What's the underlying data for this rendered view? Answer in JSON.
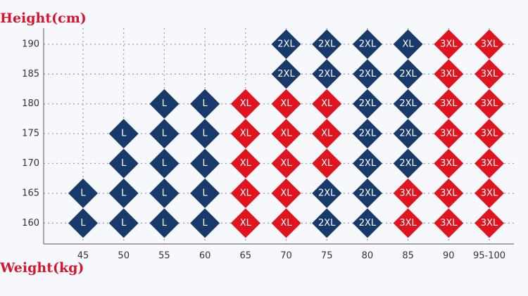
{
  "chart_data": {
    "type": "size-grid",
    "ylabel": "Height(cm)",
    "xlabel": "Weight(kg)",
    "categories": [
      "45",
      "50",
      "55",
      "60",
      "65",
      "70",
      "75",
      "80",
      "85",
      "90",
      "95-100"
    ],
    "ylim": [
      156.5,
      192.7
    ],
    "yticks": [
      160,
      165,
      170,
      175,
      180,
      185,
      190
    ],
    "grid": true,
    "rows": [
      {
        "labels": [
          "L",
          "L",
          "L",
          "L",
          "XL",
          "XL",
          "2XL",
          "2XL",
          "3XL",
          "3XL",
          "3XL"
        ],
        "colors": [
          "#173a6b",
          "#173a6b",
          "#173a6b",
          "#173a6b",
          "#e0141e",
          "#e0141e",
          "#173a6b",
          "#173a6b",
          "#e0141e",
          "#e0141e",
          "#e0141e"
        ]
      },
      {
        "labels": [
          "L",
          "L",
          "L",
          "L",
          "XL",
          "XL",
          "2XL",
          "2XL",
          "3XL",
          "3XL",
          "3XL"
        ],
        "colors": [
          "#173a6b",
          "#173a6b",
          "#173a6b",
          "#173a6b",
          "#e0141e",
          "#e0141e",
          "#173a6b",
          "#173a6b",
          "#e0141e",
          "#e0141e",
          "#e0141e"
        ]
      },
      {
        "labels": [
          null,
          "L",
          "L",
          "L",
          "XL",
          "XL",
          "XL",
          "2XL",
          "2XL",
          "3XL",
          "3XL"
        ],
        "colors": [
          null,
          "#173a6b",
          "#173a6b",
          "#173a6b",
          "#e0141e",
          "#e0141e",
          "#e0141e",
          "#173a6b",
          "#173a6b",
          "#e0141e",
          "#e0141e"
        ]
      },
      {
        "labels": [
          null,
          "L",
          "L",
          "L",
          "XL",
          "XL",
          "XL",
          "2XL",
          "2XL",
          "3XL",
          "3XL"
        ],
        "colors": [
          null,
          "#173a6b",
          "#173a6b",
          "#173a6b",
          "#e0141e",
          "#e0141e",
          "#e0141e",
          "#173a6b",
          "#173a6b",
          "#e0141e",
          "#e0141e"
        ]
      },
      {
        "labels": [
          null,
          null,
          "L",
          "L",
          "XL",
          "XL",
          "XL",
          "2XL",
          "2XL",
          "3XL",
          "3XL"
        ],
        "colors": [
          null,
          null,
          "#173a6b",
          "#173a6b",
          "#e0141e",
          "#e0141e",
          "#e0141e",
          "#173a6b",
          "#173a6b",
          "#e0141e",
          "#e0141e"
        ]
      },
      {
        "labels": [
          null,
          null,
          null,
          null,
          null,
          "2XL",
          "2XL",
          "2XL",
          "2XL",
          "3XL",
          "3XL"
        ],
        "colors": [
          null,
          null,
          null,
          null,
          null,
          "#173a6b",
          "#173a6b",
          "#173a6b",
          "#173a6b",
          "#e0141e",
          "#e0141e"
        ]
      },
      {
        "labels": [
          null,
          null,
          null,
          null,
          null,
          "2XL",
          "2XL",
          "2XL",
          "XL",
          "3XL",
          "3XL"
        ],
        "colors": [
          null,
          null,
          null,
          null,
          null,
          "#173a6b",
          "#173a6b",
          "#173a6b",
          "#173a6b",
          "#e0141e",
          "#e0141e"
        ]
      }
    ]
  }
}
